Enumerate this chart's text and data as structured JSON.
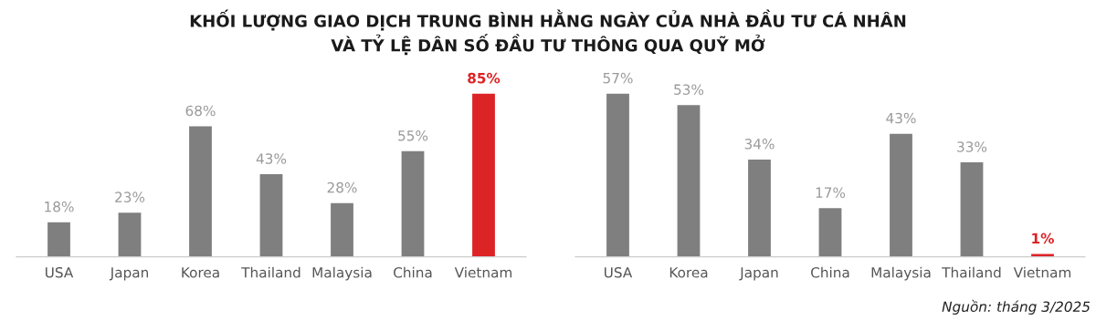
{
  "chart_data": [
    {
      "type": "bar",
      "title": "KHỐI LƯỢNG GIAO DỊCH TRUNG BÌNH HẰNG NGÀY CỦA NHÀ ĐẦU TƯ CÁ NHÂN\nVÀ TỶ LỆ DÂN SỐ ĐẦU TƯ THÔNG QUA QUỸ MỞ",
      "categories": [
        "USA",
        "Japan",
        "Korea",
        "Thailand",
        "Malaysia",
        "China",
        "Vietnam"
      ],
      "values": [
        18,
        23,
        68,
        43,
        28,
        55,
        85
      ],
      "value_labels": [
        "18%",
        "23%",
        "68%",
        "43%",
        "28%",
        "55%",
        "85%"
      ],
      "colors": [
        "#7f7f7f",
        "#7f7f7f",
        "#7f7f7f",
        "#7f7f7f",
        "#7f7f7f",
        "#7f7f7f",
        "#dc2326"
      ]
    },
    {
      "type": "bar",
      "categories": [
        "USA",
        "Korea",
        "Japan",
        "China",
        "Malaysia",
        "Thailand",
        "Vietnam"
      ],
      "values": [
        57,
        53,
        34,
        17,
        43,
        33,
        1
      ],
      "value_labels": [
        "57%",
        "53%",
        "34%",
        "17%",
        "43%",
        "33%",
        "1%"
      ],
      "colors": [
        "#7f7f7f",
        "#7f7f7f",
        "#7f7f7f",
        "#7f7f7f",
        "#7f7f7f",
        "#7f7f7f",
        "#dc2326"
      ],
      "annotations": [
        "Nguồn: tháng 3/2025"
      ]
    }
  ]
}
